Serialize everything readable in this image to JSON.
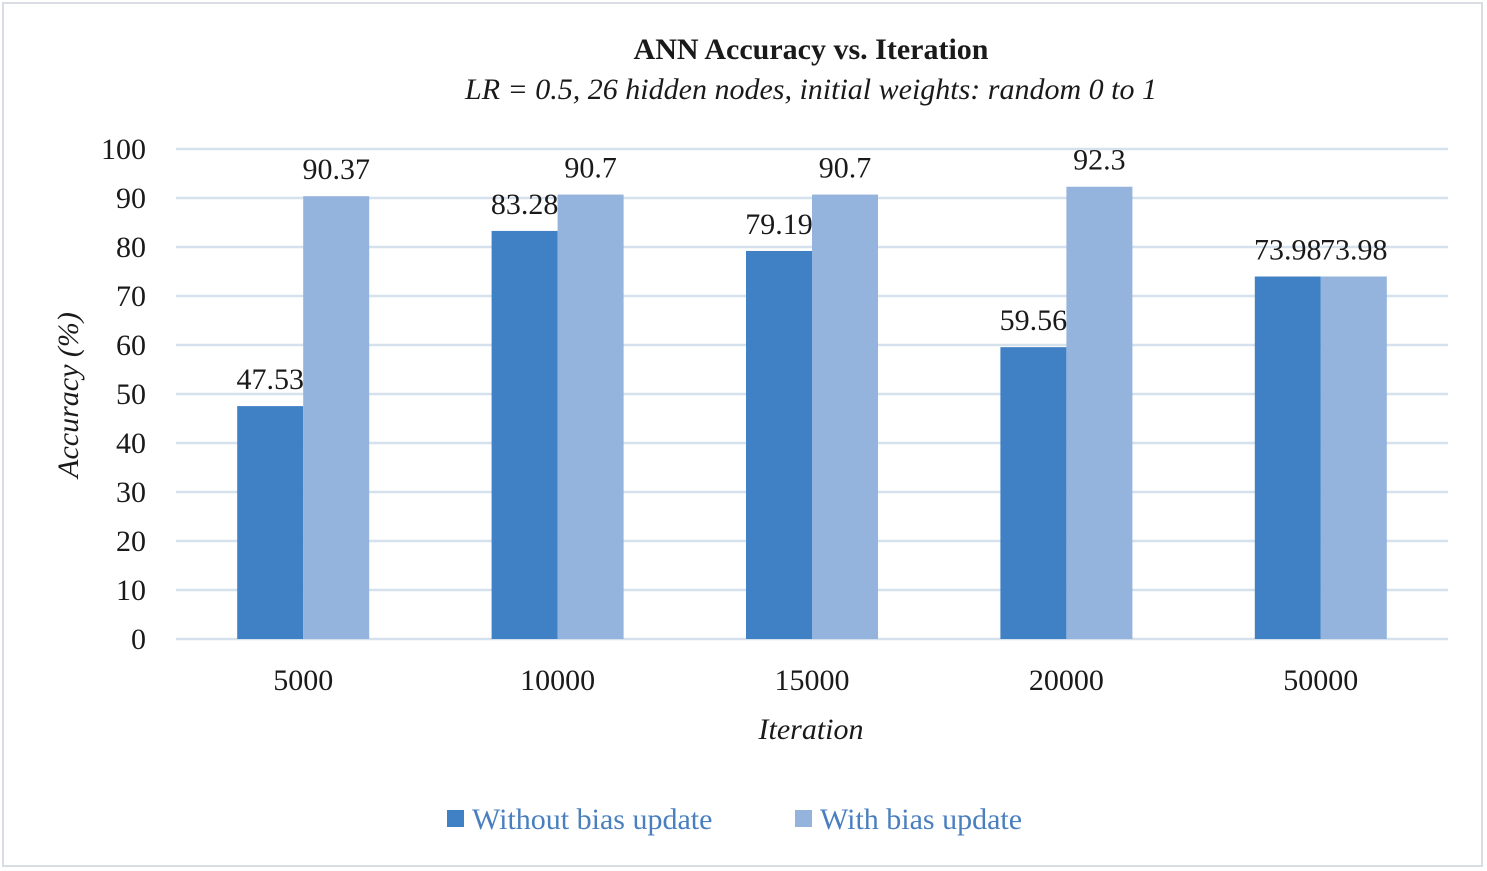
{
  "chart_data": {
    "type": "bar",
    "title": "ANN Accuracy vs. Iteration",
    "subtitle": "LR = 0.5, 26 hidden nodes, initial weights: random 0 to 1",
    "xlabel": "Iteration",
    "ylabel": "Accuracy (%)",
    "ylim": [
      0,
      100
    ],
    "yticks": [
      0,
      10,
      20,
      30,
      40,
      50,
      60,
      70,
      80,
      90,
      100
    ],
    "categories": [
      "5000",
      "10000",
      "15000",
      "20000",
      "50000"
    ],
    "series": [
      {
        "name": "Without bias update",
        "values": [
          47.53,
          83.28,
          79.19,
          59.56,
          73.98
        ],
        "labels": [
          "47.53",
          "83.28",
          "79.19",
          "59.56",
          "73.98"
        ],
        "color": "#4080c4"
      },
      {
        "name": "With bias update",
        "values": [
          90.37,
          90.7,
          90.7,
          92.3,
          73.98
        ],
        "labels": [
          "90.37",
          "90.7",
          "90.7",
          "92.3",
          "73.98"
        ],
        "color": "#94b3dd"
      }
    ],
    "grid": true,
    "legend_position": "bottom"
  }
}
